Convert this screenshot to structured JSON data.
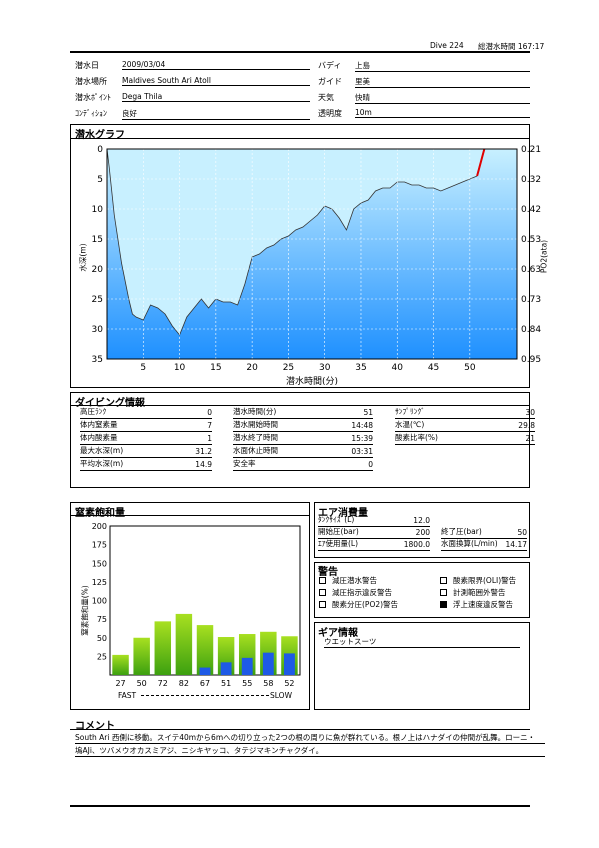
{
  "header": {
    "dive_no": "Dive 224",
    "total_time": "総潜水時間 167:17"
  },
  "info": {
    "date_label": "潜水日",
    "date": "2009/03/04",
    "place_label": "潜水場所",
    "place": "Maldives South Ari  Atoll",
    "point_label": "潜水ﾎﾟｲﾝﾄ",
    "point": "Dega Thila",
    "cond_label": "ｺﾝﾃﾞｨｼｮﾝ",
    "cond": "良好",
    "buddy_label": "バディ",
    "buddy": "上島",
    "guide_label": "ガイド",
    "guide": "里美",
    "weather_label": "天気",
    "weather": "快晴",
    "vis_label": "透明度",
    "vis": "10m"
  },
  "dive_graph": {
    "title": "潜水グラフ",
    "ylabel": "水深(m)",
    "y2label": "PO2(ata)",
    "xlabel": "潜水時間(分)"
  },
  "chart_data": {
    "type": "area",
    "title": "潜水グラフ",
    "xlabel": "潜水時間(分)",
    "ylabel": "水深(m)",
    "y2label": "PO2(ata)",
    "xlim": [
      0,
      56.5
    ],
    "ylim": [
      35,
      0
    ],
    "x_ticks": [
      5,
      10,
      15,
      20,
      25,
      30,
      35,
      40,
      45,
      50
    ],
    "y_ticks": [
      0,
      5,
      10,
      15,
      20,
      25,
      30,
      35
    ],
    "y2_ticks": [
      "0.21",
      "0.32",
      "0.42",
      "0.53",
      "0.63",
      "0.73",
      "0.84",
      "0.95"
    ],
    "depth_series": {
      "x": [
        0,
        0.3,
        1,
        2,
        3,
        3.5,
        4,
        5,
        6,
        7,
        8,
        9,
        10,
        11,
        12,
        13,
        14,
        15,
        16,
        17,
        18,
        19,
        20,
        21,
        22,
        23,
        24,
        25,
        26,
        27,
        28,
        29,
        30,
        31,
        32,
        33,
        34,
        35,
        36,
        37,
        38,
        39,
        40,
        41,
        42,
        43,
        44,
        45,
        46,
        47,
        48,
        49,
        50,
        51
      ],
      "y": [
        0,
        3,
        11,
        19,
        25,
        27.5,
        28,
        28.5,
        26,
        26.5,
        27.5,
        29.5,
        31,
        28,
        26.5,
        25,
        26.5,
        25,
        25.5,
        25.5,
        26,
        22.5,
        18,
        17.5,
        16.5,
        16,
        15,
        14.5,
        13.5,
        13,
        12,
        11,
        9.5,
        10,
        11.5,
        13.5,
        10,
        9,
        8.5,
        7,
        6.5,
        6.5,
        5.5,
        5.5,
        6,
        6,
        6.5,
        6.5,
        7,
        6.5,
        6,
        5.5,
        5,
        4.5
      ]
    },
    "ascent_series": {
      "x": [
        51,
        52
      ],
      "y": [
        4.5,
        0
      ]
    }
  },
  "dive_info": {
    "title": "ダイビング情報",
    "rows": [
      {
        "k": "高圧ﾗﾝｸ",
        "v": "0"
      },
      {
        "k": "体内窒素量",
        "v": "7"
      },
      {
        "k": "体内酸素量",
        "v": "1"
      },
      {
        "k": "最大水深(m)",
        "v": "31.2"
      },
      {
        "k": "平均水深(m)",
        "v": "14.9"
      }
    ],
    "rows2": [
      {
        "k": "潜水時間(分)",
        "v": "51"
      },
      {
        "k": "潜水開始時間",
        "v": "14:48"
      },
      {
        "k": "潜水終了時間",
        "v": "15:39"
      },
      {
        "k": "水面休止時間",
        "v": "03:31"
      },
      {
        "k": "安全率",
        "v": "0"
      }
    ],
    "rows3": [
      {
        "k": "ｻﾝﾌﾟﾘﾝｸﾞ",
        "v": "30"
      },
      {
        "k": "水温(℃)",
        "v": "29.8"
      },
      {
        "k": "酸素比率(%)",
        "v": "21"
      }
    ]
  },
  "n2_chart": {
    "title": "窒素飽和量",
    "ylabel": "窒素飽和量(%)",
    "fast": "FAST",
    "slow": "SLOW"
  },
  "n2_data": {
    "type": "bar",
    "categories": [
      "27",
      "50",
      "72",
      "82",
      "67",
      "51",
      "55",
      "58",
      "52"
    ],
    "green": [
      27,
      50,
      72,
      82,
      67,
      51,
      55,
      58,
      52
    ],
    "blue": [
      0,
      0,
      0,
      0,
      10,
      17,
      23,
      30,
      29
    ],
    "ylim": [
      0,
      200
    ],
    "y_ticks": [
      25,
      50,
      75,
      100,
      125,
      150,
      175,
      200
    ]
  },
  "air": {
    "title": "エア消費量",
    "tank_label": "ﾀﾝｸｻｲｽﾞ(L)",
    "tank": "12.0",
    "start_label": "開始圧(bar)",
    "start": "200",
    "end_label": "終了圧(bar)",
    "end": "50",
    "used_label": "ｴｱ使用量(L)",
    "used": "1800.0",
    "surf_label": "水面換算(L/min)",
    "surf": "14.17"
  },
  "warnings": {
    "title": "警告",
    "items": [
      {
        "label": "減圧潜水警告",
        "checked": false
      },
      {
        "label": "減圧指示違反警告",
        "checked": false
      },
      {
        "label": "酸素分圧(PO2)警告",
        "checked": false
      },
      {
        "label": "酸素限界(OLI)警告",
        "checked": false
      },
      {
        "label": "計測範囲外警告",
        "checked": false
      },
      {
        "label": "浮上速度違反警告",
        "checked": true
      }
    ]
  },
  "gear": {
    "title": "ギア情報",
    "value": "ウエットスーツ"
  },
  "comment": {
    "title": "コメント",
    "line1": "South Ari 西側に移動。スイテ40mから6mへの切り立った2つの根の周りに魚が群れている。根ノ上はハナダイの仲間が乱舞。ローニ・",
    "line2": "塢AJi、ツバメウオカスミアジ、ニシキヤッコ、タテジマキンチャクダイ。"
  },
  "colors": {
    "water_top": "#c8f0ff",
    "water_bottom": "#1e90ff",
    "grid": "#ffffff",
    "ascent": "#e00000",
    "bar_green_top": "#a8e020",
    "bar_green_bottom": "#3ca010",
    "bar_blue": "#1e5ae6"
  }
}
